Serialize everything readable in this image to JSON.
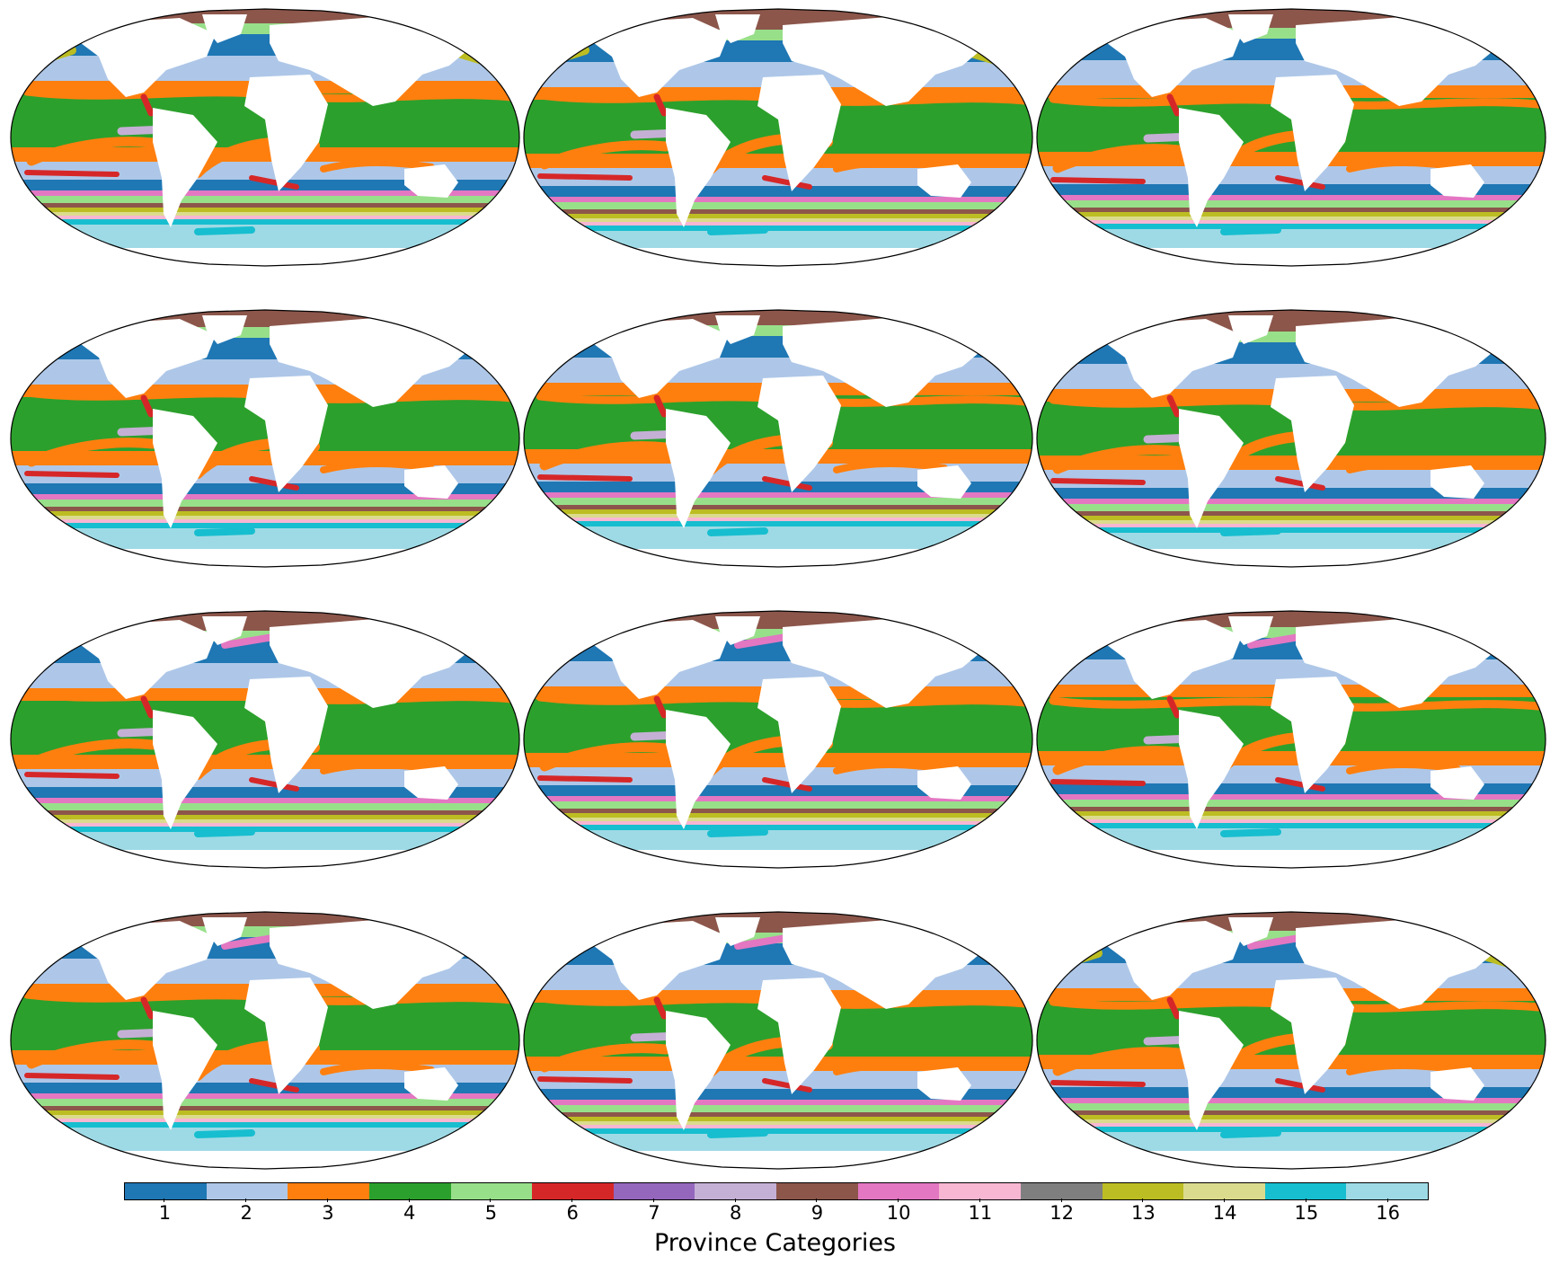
{
  "figure": {
    "panel_count": 12,
    "grid": {
      "rows": 4,
      "cols": 3
    },
    "projection": "robinson",
    "land_color": "#ffffff"
  },
  "colorbar": {
    "label": "Province Categories",
    "categories": [
      {
        "value": "1",
        "color": "#1f77b4"
      },
      {
        "value": "2",
        "color": "#aec7e8"
      },
      {
        "value": "3",
        "color": "#ff7f0e"
      },
      {
        "value": "4",
        "color": "#2ca02c"
      },
      {
        "value": "5",
        "color": "#98df8a"
      },
      {
        "value": "6",
        "color": "#d62728"
      },
      {
        "value": "7",
        "color": "#9467bd"
      },
      {
        "value": "8",
        "color": "#c5b0d5"
      },
      {
        "value": "9",
        "color": "#8c564b"
      },
      {
        "value": "10",
        "color": "#e377c2"
      },
      {
        "value": "11",
        "color": "#f7b6d2"
      },
      {
        "value": "12",
        "color": "#7f7f7f"
      },
      {
        "value": "13",
        "color": "#bcbd22"
      },
      {
        "value": "14",
        "color": "#dbdb8d"
      },
      {
        "value": "15",
        "color": "#17becf"
      },
      {
        "value": "16",
        "color": "#9edae5"
      }
    ]
  }
}
